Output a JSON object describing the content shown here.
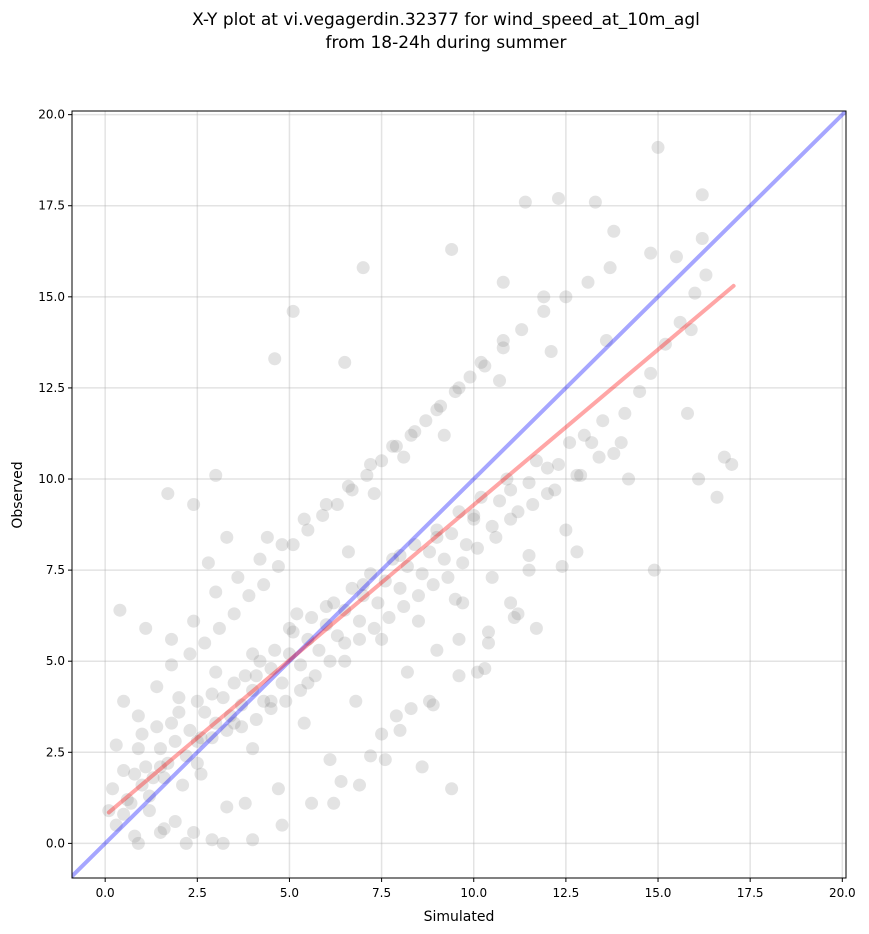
{
  "chart_data": {
    "type": "scatter",
    "title_lines": [
      "X-Y plot at vi.vegagerdin.32377 for wind_speed_at_10m_agl",
      "from 18-24h during summer"
    ],
    "xlabel": "Simulated",
    "ylabel": "Observed",
    "xlim": [
      -0.9,
      20.1
    ],
    "ylim": [
      -0.95,
      20.1
    ],
    "xticks": [
      0.0,
      2.5,
      5.0,
      7.5,
      10.0,
      12.5,
      15.0,
      17.5,
      20.0
    ],
    "yticks": [
      0.0,
      2.5,
      5.0,
      7.5,
      10.0,
      12.5,
      15.0,
      17.5,
      20.0
    ],
    "xtick_labels": [
      "0.0",
      "2.5",
      "5.0",
      "7.5",
      "10.0",
      "12.5",
      "15.0",
      "17.5",
      "20.0"
    ],
    "ytick_labels": [
      "0.0",
      "2.5",
      "5.0",
      "7.5",
      "10.0",
      "12.5",
      "15.0",
      "17.5",
      "20.0"
    ],
    "grid": true,
    "legend": "none",
    "points": {
      "color": "#808080",
      "x": [
        0.1,
        0.2,
        0.3,
        0.5,
        0.6,
        0.8,
        0.9,
        1.0,
        1.1,
        1.3,
        1.4,
        1.5,
        1.7,
        1.8,
        1.9,
        2.0,
        2.2,
        2.3,
        2.5,
        2.6,
        2.7,
        2.9,
        3.0,
        3.2,
        3.4,
        3.5,
        3.7,
        3.8,
        4.0,
        4.2,
        4.3,
        4.5,
        4.6,
        4.8,
        5.0,
        5.1,
        5.3,
        5.5,
        5.6,
        5.8,
        6.0,
        6.2,
        6.3,
        6.5,
        6.7,
        6.9,
        7.0,
        7.2,
        7.4,
        7.6,
        7.8,
        8.0,
        8.2,
        8.4,
        8.6,
        8.8,
        9.0,
        9.2,
        9.4,
        9.6,
        9.8,
        10.0,
        10.2,
        10.5,
        10.7,
        10.9,
        11.2,
        11.5,
        11.7,
        12.0,
        12.3,
        12.6,
        12.9,
        13.2,
        13.5,
        13.8,
        14.1,
        14.5,
        14.8,
        15.2,
        15.6,
        16.0,
        16.3,
        0.3,
        0.5,
        0.7,
        0.9,
        1.2,
        1.4,
        1.6,
        1.8,
        2.1,
        2.3,
        2.5,
        2.7,
        2.9,
        3.1,
        3.3,
        3.5,
        3.7,
        3.9,
        4.1,
        4.3,
        4.5,
        4.7,
        4.9,
        5.1,
        5.3,
        5.5,
        5.7,
        5.9,
        6.1,
        6.3,
        6.5,
        6.7,
        6.9,
        7.1,
        7.3,
        7.5,
        7.7,
        7.9,
        8.1,
        8.3,
        8.5,
        8.7,
        8.9,
        9.1,
        9.3,
        9.5,
        9.7,
        9.9,
        10.1,
        10.3,
        10.6,
        10.8,
        11.0,
        11.3,
        11.6,
        11.9,
        12.2,
        12.5,
        12.8,
        13.1,
        13.4,
        13.7,
        14.0,
        1.0,
        1.5,
        2.0,
        2.5,
        3.0,
        3.5,
        4.0,
        4.5,
        5.0,
        5.5,
        6.0,
        6.5,
        7.0,
        7.5,
        8.0,
        8.5,
        9.0,
        9.5,
        10.0,
        10.5,
        11.0,
        11.5,
        12.0,
        12.5,
        13.0,
        0.5,
        1.2,
        1.9,
        2.6,
        3.3,
        4.0,
        4.7,
        5.4,
        6.1,
        6.8,
        7.5,
        8.2,
        8.9,
        9.6,
        10.3,
        11.0,
        11.7,
        12.4,
        1.8,
        2.4,
        3.0,
        3.6,
        4.2,
        4.8,
        5.4,
        6.0,
        6.6,
        7.2,
        7.8,
        8.4,
        9.0,
        9.6,
        10.2,
        10.8,
        0.8,
        1.6,
        2.4,
        3.2,
        4.0,
        4.8,
        5.6,
        6.4,
        7.2,
        8.0,
        8.8,
        9.6,
        10.4,
        11.2,
        0.4,
        1.1,
        2.8,
        4.4,
        5.2,
        6.6,
        7.3,
        8.1,
        9.2,
        10.7,
        12.1,
        13.6,
        15.0,
        16.2,
        16.8,
        17.0,
        16.6,
        16.1,
        15.8,
        16.2,
        12.3,
        11.4,
        13.3,
        14.8,
        15.5,
        6.5,
        7.0,
        5.1,
        4.6,
        3.0,
        1.7,
        2.4,
        3.3,
        9.4,
        10.8,
        11.9,
        13.8,
        14.9,
        15.9,
        7.9,
        8.6,
        9.4,
        10.1,
        11.5,
        12.8,
        14.2,
        4.1,
        3.8,
        2.9,
        2.2,
        1.5,
        0.9,
        6.2,
        6.9,
        7.6,
        8.3,
        9.0,
        9.7,
        10.4,
        11.1
      ],
      "y": [
        0.9,
        1.5,
        2.7,
        2.0,
        1.2,
        1.9,
        2.6,
        3.0,
        2.1,
        1.8,
        3.2,
        2.6,
        2.2,
        3.3,
        2.8,
        3.6,
        2.4,
        3.1,
        3.9,
        2.9,
        3.6,
        4.1,
        3.3,
        4.0,
        3.5,
        4.4,
        3.8,
        4.6,
        4.2,
        5.0,
        3.9,
        4.8,
        5.3,
        4.4,
        5.2,
        5.8,
        4.9,
        5.6,
        6.2,
        5.3,
        6.0,
        6.6,
        5.7,
        6.4,
        7.0,
        6.1,
        6.8,
        7.4,
        6.6,
        7.2,
        7.8,
        7.0,
        7.6,
        8.2,
        7.4,
        8.0,
        8.6,
        7.8,
        8.5,
        9.1,
        8.2,
        8.9,
        9.5,
        8.7,
        9.4,
        10.0,
        9.1,
        9.9,
        10.5,
        9.6,
        10.4,
        11.0,
        10.1,
        11.0,
        11.6,
        10.7,
        11.8,
        12.4,
        12.9,
        13.7,
        14.3,
        15.1,
        15.6,
        0.5,
        3.9,
        1.1,
        3.5,
        0.9,
        4.3,
        1.8,
        4.9,
        1.6,
        5.2,
        2.2,
        5.5,
        2.9,
        5.9,
        3.1,
        6.3,
        3.2,
        6.8,
        3.4,
        7.1,
        3.7,
        7.6,
        3.9,
        8.2,
        4.2,
        8.6,
        4.6,
        9.0,
        5.0,
        9.3,
        5.5,
        9.7,
        5.6,
        10.1,
        5.9,
        10.5,
        6.2,
        10.9,
        6.5,
        11.2,
        6.8,
        11.6,
        7.1,
        12.0,
        7.3,
        12.4,
        7.7,
        12.8,
        8.1,
        13.1,
        8.4,
        13.6,
        8.9,
        14.1,
        9.3,
        14.6,
        9.7,
        15.0,
        10.1,
        15.4,
        10.6,
        15.8,
        11.0,
        1.6,
        2.1,
        4.0,
        2.8,
        4.7,
        3.3,
        5.2,
        3.9,
        5.9,
        4.4,
        6.5,
        5.0,
        7.1,
        5.6,
        7.9,
        6.1,
        8.4,
        6.7,
        9.0,
        7.3,
        9.7,
        7.9,
        10.3,
        8.6,
        11.2,
        0.8,
        1.3,
        0.6,
        1.9,
        1.0,
        2.6,
        1.5,
        3.3,
        2.3,
        3.9,
        3.0,
        4.7,
        3.8,
        5.6,
        4.8,
        6.6,
        5.9,
        7.6,
        5.6,
        6.1,
        6.9,
        7.3,
        7.8,
        8.2,
        8.9,
        9.3,
        9.8,
        10.4,
        10.9,
        11.3,
        11.9,
        12.5,
        13.2,
        13.8,
        0.2,
        0.4,
        0.3,
        0.0,
        0.1,
        0.5,
        1.1,
        1.7,
        2.4,
        3.1,
        3.9,
        4.6,
        5.5,
        6.3,
        6.4,
        5.9,
        7.7,
        8.4,
        6.3,
        8.0,
        9.6,
        10.6,
        11.2,
        12.7,
        13.5,
        13.8,
        19.1,
        17.8,
        10.6,
        10.4,
        9.5,
        10.0,
        11.8,
        16.6,
        17.7,
        17.6,
        17.6,
        16.2,
        16.1,
        13.2,
        15.8,
        14.6,
        13.3,
        10.1,
        9.6,
        9.3,
        8.4,
        16.3,
        15.4,
        15.0,
        16.8,
        7.5,
        14.1,
        3.5,
        2.1,
        1.5,
        4.7,
        7.5,
        8.0,
        10.0,
        4.6,
        1.1,
        0.1,
        0.0,
        0.3,
        0.0,
        1.1,
        1.6,
        2.3,
        3.7,
        5.3,
        6.6,
        5.8,
        6.2
      ]
    },
    "lines": [
      {
        "name": "1:1 line",
        "color": "#0000ff",
        "x": [
          -0.9,
          20.1
        ],
        "y": [
          -0.9,
          20.1
        ]
      },
      {
        "name": "regression fit",
        "color": "#ff0000",
        "x": [
          0.1,
          17.05
        ],
        "y": [
          0.85,
          15.3
        ]
      }
    ]
  }
}
